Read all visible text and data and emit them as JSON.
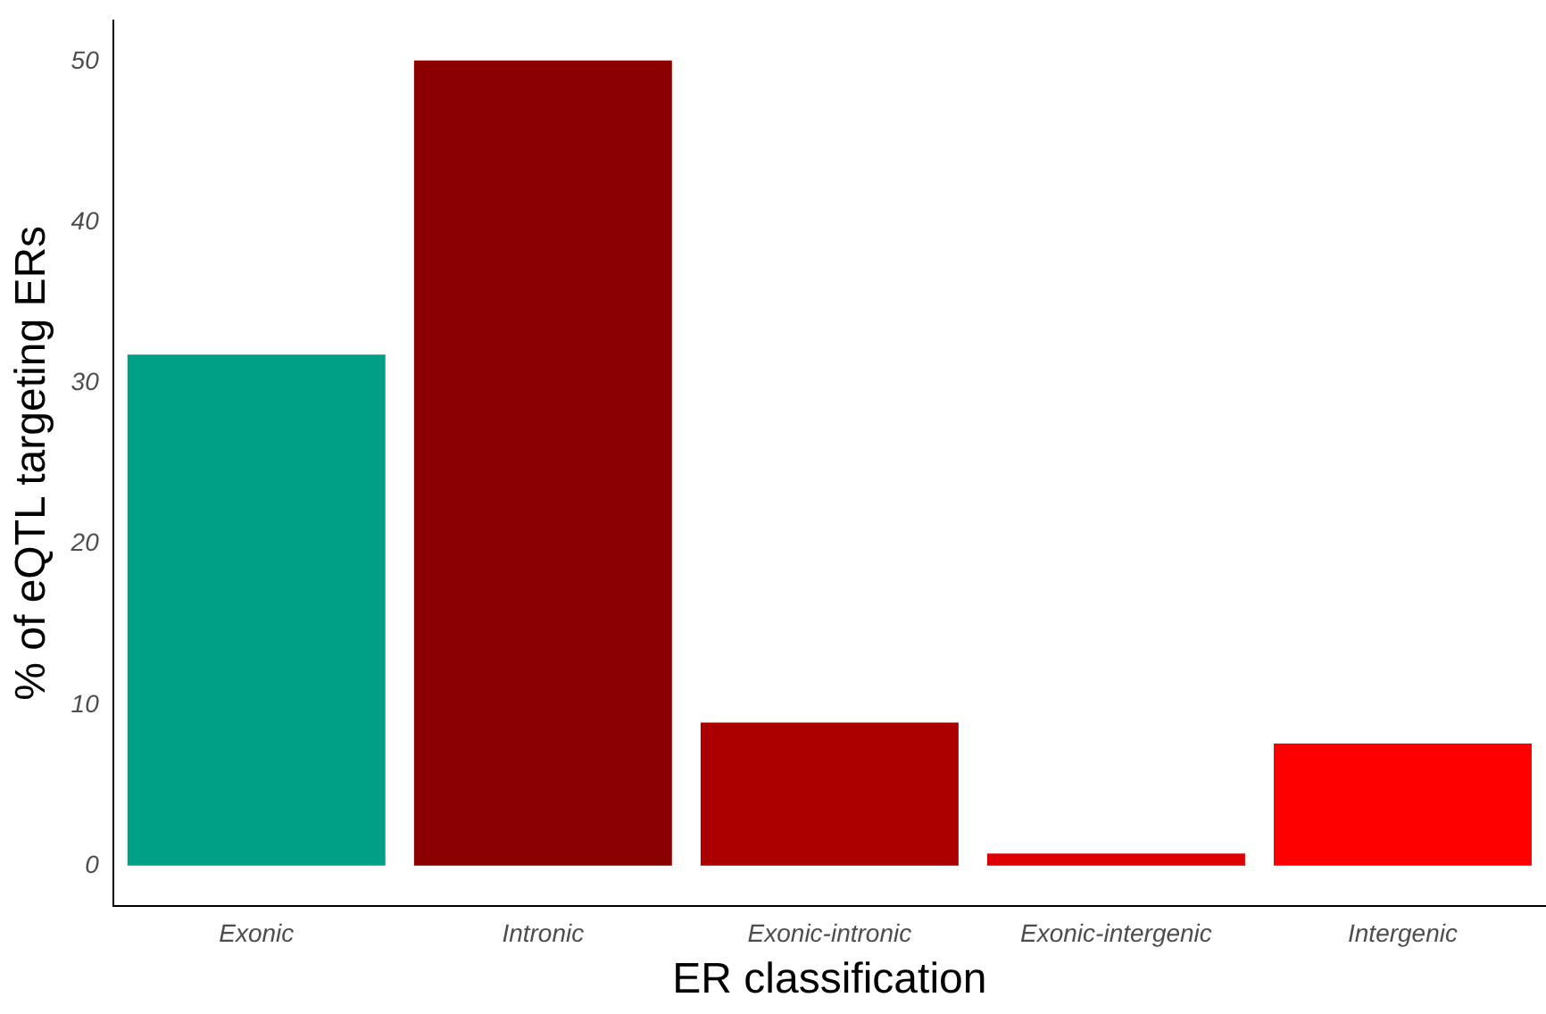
{
  "chart_data": {
    "type": "bar",
    "xlabel": "ER classification",
    "ylabel": "% of eQTL targeting ERs",
    "categories": [
      "Exonic",
      "Intronic",
      "Exonic-intronic",
      "Exonic-intergenic",
      "Intergenic"
    ],
    "values": [
      31.8,
      50.1,
      8.9,
      0.75,
      7.6
    ],
    "colors": [
      "#00a087",
      "#8b0000",
      "#aa0000",
      "#dd0000",
      "#ff0000"
    ],
    "ylim": [
      -2.5,
      52.6
    ],
    "yticks": [
      0,
      10,
      20,
      30,
      40,
      50
    ],
    "grid": false,
    "legend": false
  }
}
